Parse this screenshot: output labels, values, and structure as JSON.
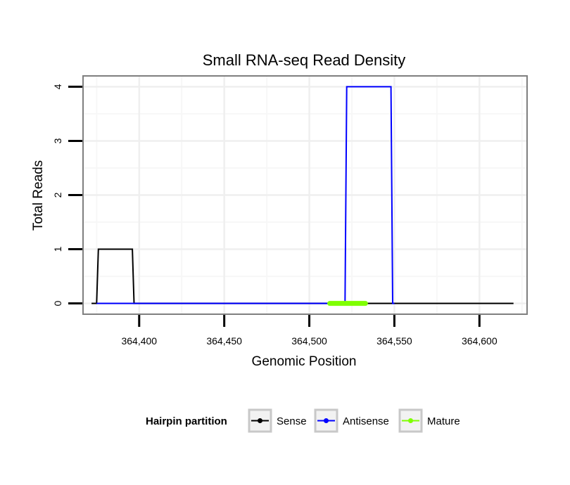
{
  "chart_data": {
    "type": "line",
    "title": "Small RNA-seq Read Density",
    "xlabel": "Genomic Position",
    "ylabel": "Total Reads",
    "xlim": [
      364367,
      364628
    ],
    "ylim": [
      -0.2,
      4.2
    ],
    "x_ticks": [
      364400,
      364450,
      364500,
      364550,
      364600
    ],
    "x_tick_labels": [
      "364,400",
      "364,450",
      "364,500",
      "364,550",
      "364,600"
    ],
    "y_ticks": [
      0,
      1,
      2,
      3,
      4
    ],
    "y_tick_labels": [
      "0",
      "1",
      "2",
      "3",
      "4"
    ],
    "grid": true,
    "legend": {
      "title": "Hairpin partition",
      "position": "bottom",
      "entries": [
        {
          "name": "Sense",
          "color": "#000000"
        },
        {
          "name": "Antisense",
          "color": "#0000ff"
        },
        {
          "name": "Mature",
          "color": "#7fff00"
        }
      ]
    },
    "series": [
      {
        "name": "Sense",
        "color": "#000000",
        "x": [
          364372,
          364375,
          364376,
          364396,
          364397,
          364620
        ],
        "y": [
          0,
          0,
          1,
          1,
          0,
          0
        ]
      },
      {
        "name": "Antisense",
        "color": "#0000ff",
        "x": [
          364375,
          364396,
          364397,
          364521,
          364522,
          364548,
          364549,
          364550
        ],
        "y": [
          0,
          0,
          0,
          0,
          4,
          4,
          0,
          0
        ]
      },
      {
        "name": "Mature",
        "color": "#7fff00",
        "x": [
          364512,
          364533
        ],
        "y": [
          0,
          0
        ]
      }
    ]
  }
}
